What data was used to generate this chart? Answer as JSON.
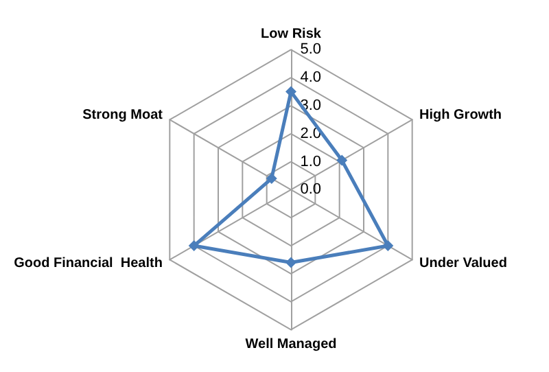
{
  "chart_data": {
    "type": "radar",
    "categories": [
      "Low Risk",
      "High Growth",
      "Under Valued",
      "Well Managed",
      "Good Financial  Health",
      "Strong Moat"
    ],
    "series": [
      {
        "color": "#4a7ebb",
        "values": [
          3.5,
          2.1,
          4.0,
          2.6,
          4.0,
          0.8
        ]
      }
    ],
    "ylim": [
      0,
      5
    ],
    "yticks": [
      {
        "value": 0,
        "label": "0.0"
      },
      {
        "value": 1,
        "label": "1.0"
      },
      {
        "value": 2,
        "label": "2.0"
      },
      {
        "value": 3,
        "label": "3.0"
      },
      {
        "value": 4,
        "label": "4.0"
      },
      {
        "value": 5,
        "label": "5.0"
      }
    ],
    "marker": "diamond",
    "grid": true
  }
}
